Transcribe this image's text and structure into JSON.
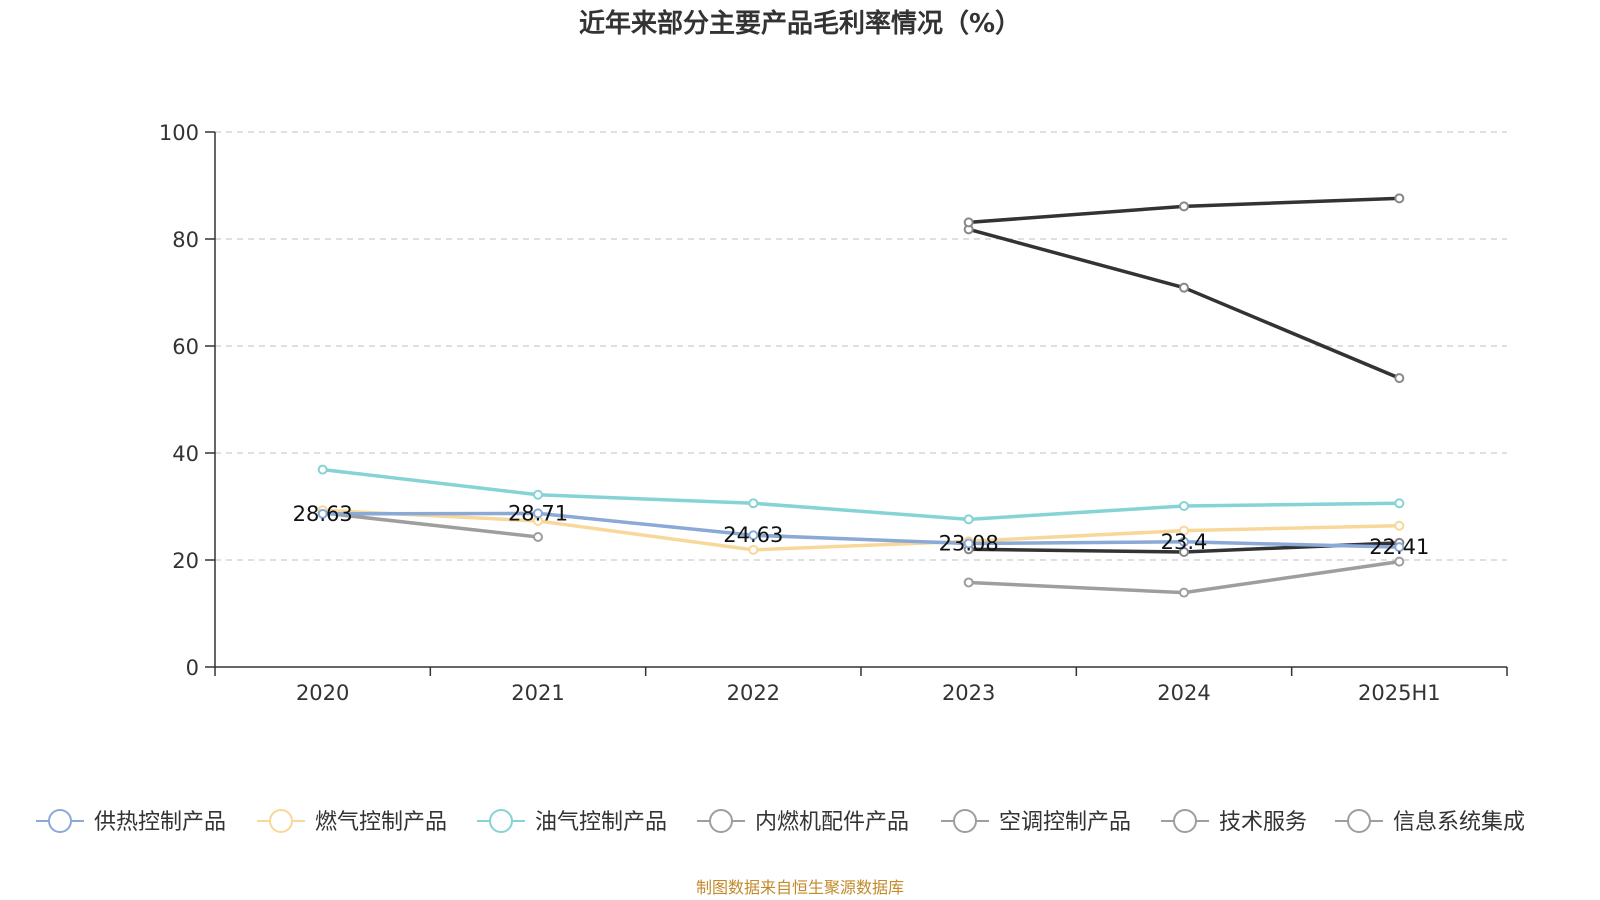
{
  "chart_data": {
    "type": "line",
    "title": "近年来部分主要产品毛利率情况（%）",
    "categories": [
      "2020",
      "2021",
      "2022",
      "2023",
      "2024",
      "2025H1"
    ],
    "ylim": [
      0,
      100
    ],
    "yticks": [
      0,
      20,
      40,
      60,
      80,
      100
    ],
    "grid": true,
    "legend_position": "bottom",
    "series": [
      {
        "name": "供热控制产品",
        "color": "#8aa9d6",
        "values": [
          28.63,
          28.71,
          24.63,
          23.08,
          23.4,
          22.41
        ],
        "labels": [
          "28.63",
          "28.71",
          "24.63",
          "23.08",
          "23.4",
          "22.41"
        ]
      },
      {
        "name": "燃气控制产品",
        "color": "#f8d89a",
        "values": [
          29.3,
          27.3,
          21.9,
          23.5,
          25.5,
          26.4
        ]
      },
      {
        "name": "油气控制产品",
        "color": "#86d3d5",
        "values": [
          36.9,
          32.2,
          30.6,
          27.6,
          30.1,
          30.6
        ]
      },
      {
        "name": "内燃机配件产品",
        "color": "#333333",
        "values": [
          null,
          null,
          null,
          22.0,
          21.5,
          23.2
        ]
      },
      {
        "name": "空调控制产品",
        "color": "#333333",
        "values": [
          null,
          null,
          null,
          83.1,
          86.1,
          87.6
        ]
      },
      {
        "name": "技术服务",
        "color": "#333333",
        "values": [
          null,
          null,
          null,
          81.8,
          70.9,
          54.0
        ]
      },
      {
        "name": "信息系统集成",
        "color": "#9e9e9e",
        "values": [
          28.8,
          24.3,
          null,
          15.8,
          13.9,
          19.7
        ]
      }
    ]
  },
  "legend": [
    {
      "name": "供热控制产品",
      "color": "#8aa9d6"
    },
    {
      "name": "燃气控制产品",
      "color": "#f8d89a"
    },
    {
      "name": "油气控制产品",
      "color": "#86d3d5"
    },
    {
      "name": "内燃机配件产品",
      "color": "#9e9e9e"
    },
    {
      "name": "空调控制产品",
      "color": "#9e9e9e"
    },
    {
      "name": "技术服务",
      "color": "#9e9e9e"
    },
    {
      "name": "信息系统集成",
      "color": "#9e9e9e"
    }
  ],
  "source": "制图数据来自恒生聚源数据库"
}
